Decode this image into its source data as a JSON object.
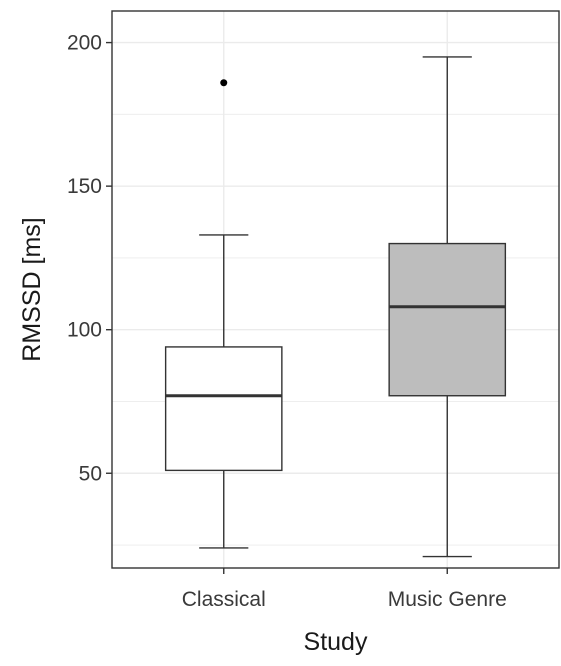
{
  "chart_data": {
    "type": "boxplot",
    "xlabel": "Study",
    "ylabel": "RMSSD [ms]",
    "ylim": [
      17,
      211
    ],
    "y_ticks": [
      50,
      100,
      150,
      200
    ],
    "categories": [
      "Classical",
      "Music Genre"
    ],
    "boxes": [
      {
        "category": "Classical",
        "whisker_low": 24,
        "q1": 51,
        "median": 77,
        "q3": 94,
        "whisker_high": 133,
        "outliers": [
          186
        ],
        "fill": "#ffffff"
      },
      {
        "category": "Music Genre",
        "whisker_low": 21,
        "q1": 77,
        "median": 108,
        "q3": 130,
        "whisker_high": 195,
        "outliers": [],
        "fill": "#bdbdbd"
      }
    ],
    "grid": true,
    "colors": {
      "panel_border": "#333333",
      "grid": "#ebebeb",
      "box_stroke": "#333333",
      "median": "#333333"
    }
  }
}
